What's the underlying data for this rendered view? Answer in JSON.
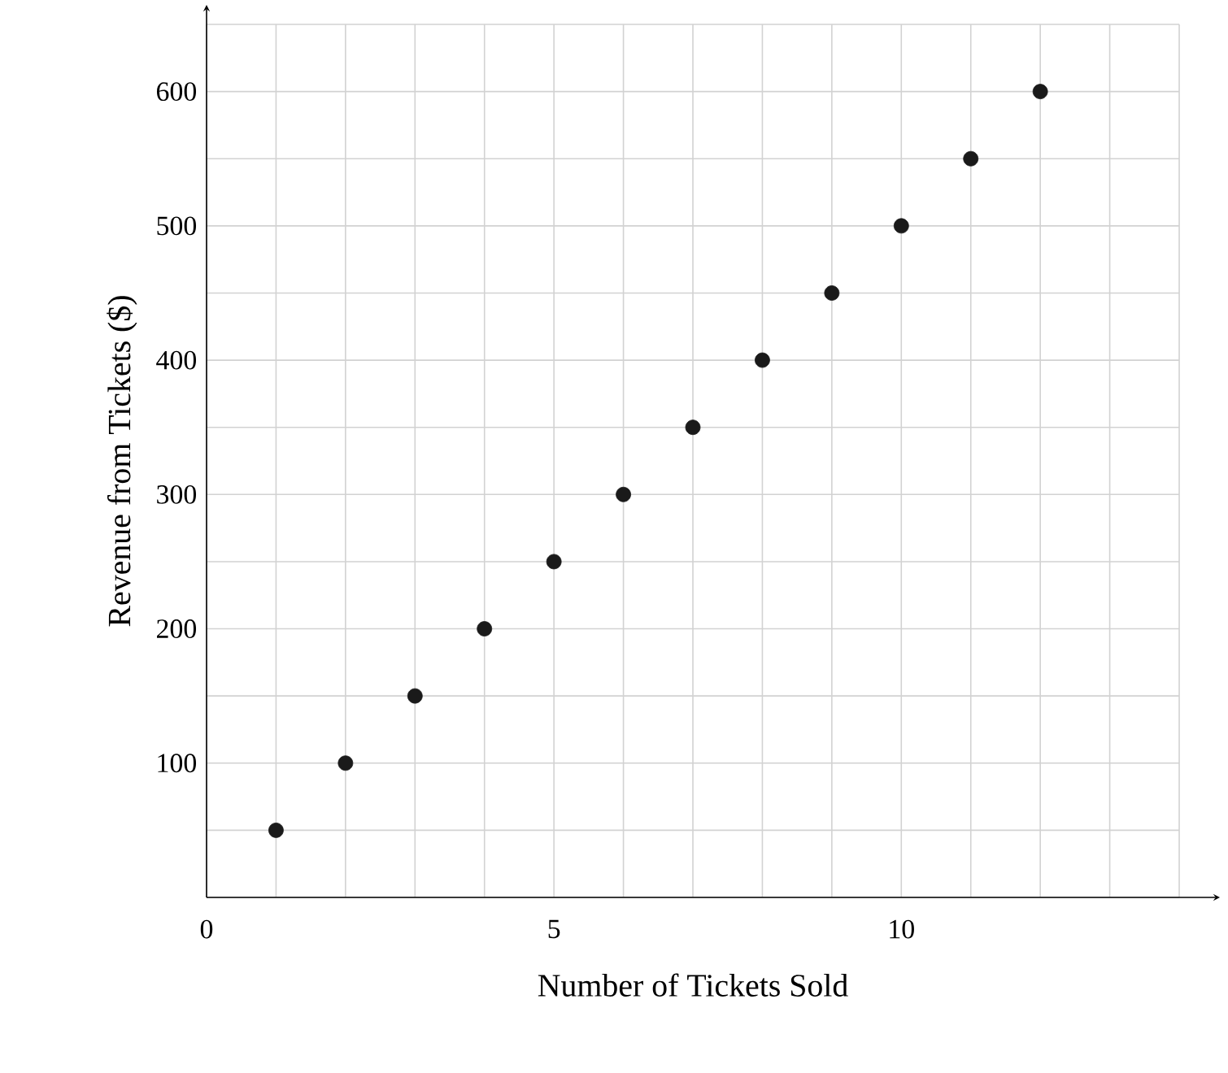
{
  "chart_data": {
    "type": "scatter",
    "xlabel": "Number of Tickets Sold",
    "ylabel": "Revenue from Tickets ($)",
    "x": [
      1,
      2,
      3,
      4,
      5,
      6,
      7,
      8,
      9,
      10,
      11,
      12
    ],
    "series": [
      {
        "color": "#1a1a1a",
        "values": [
          50,
          100,
          150,
          200,
          250,
          300,
          350,
          400,
          450,
          500,
          550,
          600
        ]
      }
    ],
    "marker": "circle",
    "grid": true,
    "xlim": [
      0,
      14
    ],
    "ylim": [
      0,
      650
    ],
    "xticks": [
      {
        "value": 0,
        "label": "0"
      },
      {
        "value": 1,
        "label": null
      },
      {
        "value": 2,
        "label": null
      },
      {
        "value": 3,
        "label": null
      },
      {
        "value": 4,
        "label": null
      },
      5,
      {
        "value": 6,
        "label": null
      },
      {
        "value": 7,
        "label": null
      },
      {
        "value": 8,
        "label": null
      },
      {
        "value": 9,
        "label": null
      },
      10,
      {
        "value": 11,
        "label": null
      },
      {
        "value": 12,
        "label": null
      },
      {
        "value": 13,
        "label": null
      },
      {
        "value": 14,
        "label": null
      }
    ],
    "yticks": [
      {
        "value": 0,
        "label": null
      },
      {
        "value": 50,
        "label": null
      },
      100,
      {
        "value": 150,
        "label": null
      },
      200,
      {
        "value": 250,
        "label": null
      },
      300,
      {
        "value": 350,
        "label": null
      },
      400,
      {
        "value": 450,
        "label": null
      },
      500,
      {
        "value": 550,
        "label": null
      },
      600,
      {
        "value": 650,
        "label": null
      }
    ]
  }
}
